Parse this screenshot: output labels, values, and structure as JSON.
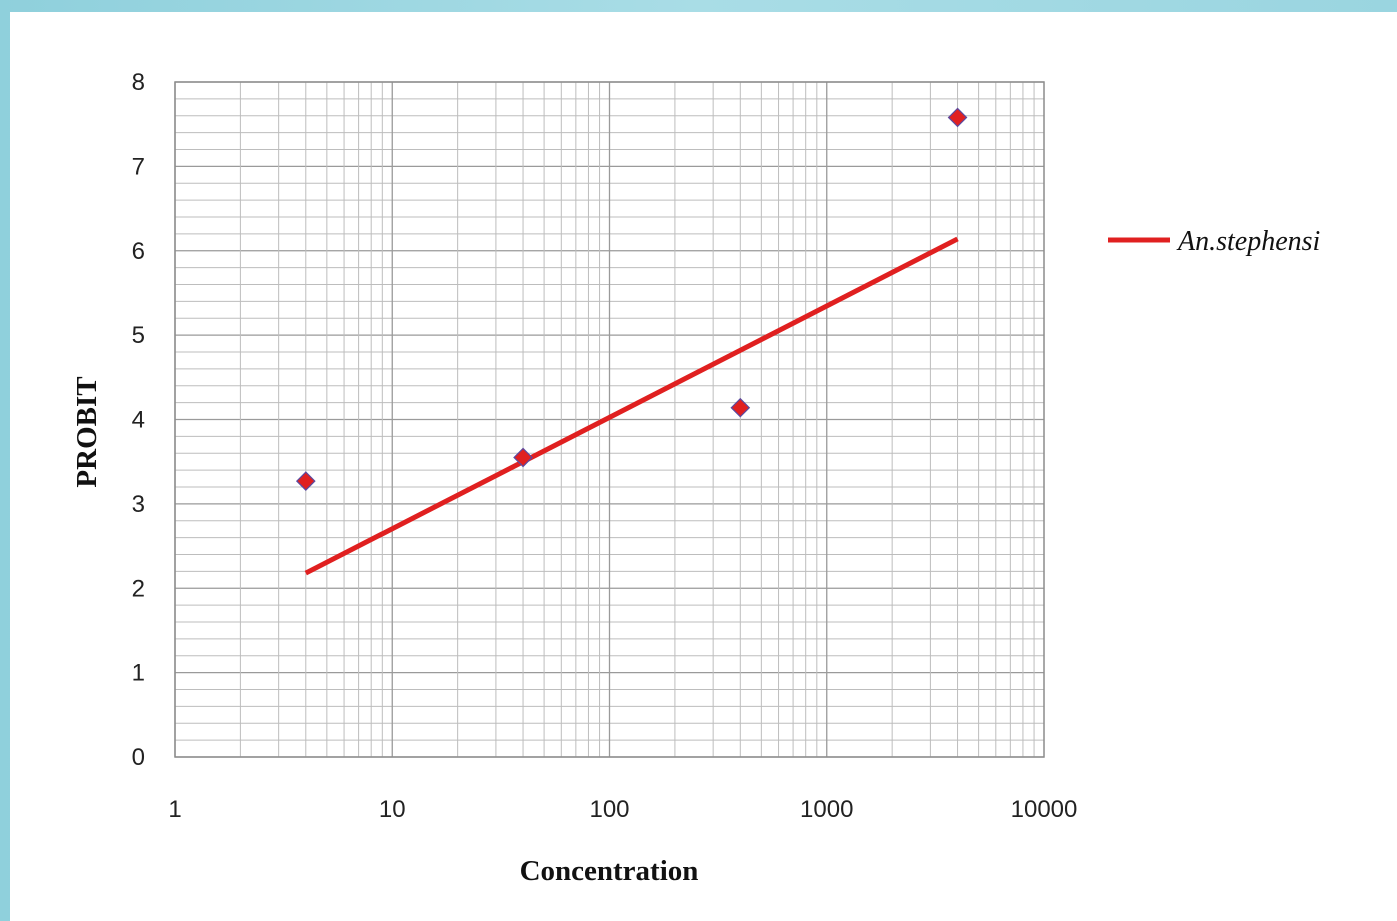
{
  "chart_data": {
    "type": "scatter",
    "xlabel": "Concentration",
    "ylabel": "PROBIT",
    "x_scale": "log",
    "xlim": [
      1,
      10000
    ],
    "ylim": [
      0,
      8
    ],
    "x_ticks": [
      "1",
      "10",
      "100",
      "1000",
      "10000"
    ],
    "y_ticks": [
      "0",
      "1",
      "2",
      "3",
      "4",
      "5",
      "6",
      "7",
      "8"
    ],
    "grid": true,
    "legend_position": "right",
    "series": [
      {
        "name": "",
        "kind": "scatter",
        "marker": "diamond",
        "color": "#e02020",
        "points": [
          {
            "x": 4,
            "y": 3.27
          },
          {
            "x": 40,
            "y": 3.55
          },
          {
            "x": 400,
            "y": 4.14
          },
          {
            "x": 4000,
            "y": 7.58
          }
        ]
      },
      {
        "name": "An.stephensi",
        "kind": "line",
        "color": "#e02020",
        "points": [
          {
            "x": 4,
            "y": 2.18
          },
          {
            "x": 4000,
            "y": 6.14
          }
        ]
      }
    ]
  }
}
